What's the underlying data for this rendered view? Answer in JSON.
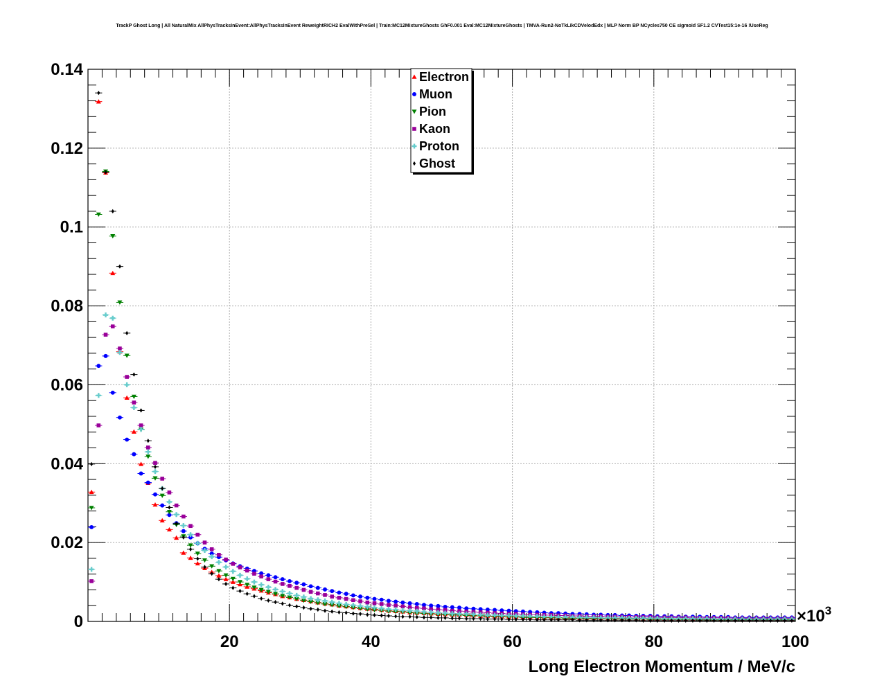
{
  "title": "TrackP Ghost Long | All NaturalMix AllPhysTracksInEvent:AllPhysTracksInEvent ReweightRICH2 EvalWithPreSel | Train:MC12MixtureGhosts GhF0.001 Eval:MC12MixtureGhosts | TMVA-Run2-NoTkLikCDVelodEdx | MLP Norm BP NCycles750 CE sigmoid SF1.2 CVTest15:1e-16 !UseReg",
  "chart_data": {
    "type": "scatter",
    "title": "TrackP Ghost Long | All NaturalMix AllPhysTracksInEvent:AllPhysTracksInEvent ReweightRICH2 EvalWithPreSel | Train:MC12MixtureGhosts GhF0.001 Eval:MC12MixtureGhosts | TMVA-Run2-NoTkLikCDVelodEdx | MLP Norm BP NCycles750 CE sigmoid SF1.2 CVTest15:1e-16 !UseReg",
    "xlabel": "Long Electron Momentum / MeV/c",
    "x_multiplier": "×10^3",
    "xlim": [
      0,
      100
    ],
    "ylim": [
      0,
      0.14
    ],
    "x_ticks": [
      20,
      40,
      60,
      80,
      100
    ],
    "x_tick_labels": [
      "20",
      "40",
      "60",
      "80",
      "100"
    ],
    "y_ticks": [
      0,
      0.02,
      0.04,
      0.06,
      0.08,
      0.1,
      0.12,
      0.14
    ],
    "y_tick_labels": [
      "0",
      "0.02",
      "0.04",
      "0.06",
      "0.08",
      "0.1",
      "0.12",
      "0.14"
    ],
    "grid": true,
    "legend_position": "top-center",
    "x": [
      0.5,
      1.5,
      2.5,
      3.5,
      4.5,
      5.5,
      6.5,
      7.5,
      8.5,
      9.5,
      10.5,
      11.5,
      12.5,
      13.5,
      14.5,
      15.5,
      16.5,
      17.5,
      18.5,
      19.5,
      20.5,
      21.5,
      22.5,
      23.5,
      24.5,
      25.5,
      26.5,
      27.5,
      28.5,
      29.5,
      30.5,
      31.5,
      32.5,
      33.5,
      34.5,
      35.5,
      36.5,
      37.5,
      38.5,
      39.5,
      40.5,
      41.5,
      42.5,
      43.5,
      44.5,
      45.5,
      46.5,
      47.5,
      48.5,
      49.5,
      50.5,
      51.5,
      52.5,
      53.5,
      54.5,
      55.5,
      56.5,
      57.5,
      58.5,
      59.5,
      60.5,
      61.5,
      62.5,
      63.5,
      64.5,
      65.5,
      66.5,
      67.5,
      68.5,
      69.5,
      70.5,
      71.5,
      72.5,
      73.5,
      74.5,
      75.5,
      76.5,
      77.5,
      78.5,
      79.5,
      80.5,
      81.5,
      82.5,
      83.5,
      84.5,
      85.5,
      86.5,
      87.5,
      88.5,
      89.5,
      90.5,
      91.5,
      92.5,
      93.5,
      94.5,
      95.5,
      96.5,
      97.5,
      98.5,
      99.5
    ],
    "series": [
      {
        "name": "Electron",
        "color": "#ff0000",
        "marker": "triangle-up",
        "values": [
          0.0328,
          0.1318,
          0.1138,
          0.0883,
          0.0684,
          0.0567,
          0.0481,
          0.0399,
          0.0351,
          0.0296,
          0.0256,
          0.0233,
          0.0212,
          0.0174,
          0.0161,
          0.0147,
          0.0135,
          0.0125,
          0.0116,
          0.0107,
          0.01,
          0.0094,
          0.0088,
          0.0083,
          0.0078,
          0.0073,
          0.0069,
          0.0064,
          0.0061,
          0.0057,
          0.0054,
          0.0051,
          0.0048,
          0.0045,
          0.0043,
          0.004,
          0.0038,
          0.0036,
          0.0034,
          0.0032,
          0.0031,
          0.0029,
          0.0027,
          0.0026,
          0.0025,
          0.0023,
          0.0022,
          0.0021,
          0.002,
          0.0019,
          0.0018,
          0.0017,
          0.0017,
          0.0016,
          0.0015,
          0.0014,
          0.0014,
          0.0013,
          0.0013,
          0.0012,
          0.0012,
          0.0011,
          0.0011,
          0.001,
          0.001,
          0.001,
          0.0009,
          0.0009,
          0.0009,
          0.0008,
          0.0008,
          0.0008,
          0.0008,
          0.0007,
          0.0007,
          0.0007,
          0.0007,
          0.0007,
          0.0006,
          0.0006,
          0.0006,
          0.0006,
          0.0006,
          0.0006,
          0.0006,
          0.0006,
          0.0006,
          0.0006,
          0.0006,
          0.0006,
          0.0006,
          0.0006,
          0.0006,
          0.0006,
          0.0006,
          0.0006,
          0.0006,
          0.0006,
          0.0006,
          0.0006
        ]
      },
      {
        "name": "Muon",
        "color": "#0000ff",
        "marker": "circle",
        "values": [
          0.0239,
          0.0648,
          0.0673,
          0.058,
          0.0517,
          0.0461,
          0.0424,
          0.0375,
          0.0352,
          0.0322,
          0.0294,
          0.027,
          0.0249,
          0.0229,
          0.0213,
          0.0198,
          0.0184,
          0.0172,
          0.0163,
          0.0155,
          0.0147,
          0.014,
          0.0134,
          0.0128,
          0.0122,
          0.0117,
          0.0112,
          0.0107,
          0.0102,
          0.0098,
          0.0094,
          0.0089,
          0.0085,
          0.0081,
          0.0077,
          0.0073,
          0.007,
          0.0066,
          0.0063,
          0.006,
          0.0057,
          0.0055,
          0.0052,
          0.005,
          0.0048,
          0.0046,
          0.0044,
          0.0042,
          0.004,
          0.0039,
          0.0037,
          0.0036,
          0.0035,
          0.0033,
          0.0032,
          0.0031,
          0.003,
          0.0029,
          0.0028,
          0.0027,
          0.0026,
          0.0025,
          0.0024,
          0.0023,
          0.0022,
          0.0021,
          0.0021,
          0.002,
          0.0019,
          0.0019,
          0.0018,
          0.0017,
          0.0017,
          0.0016,
          0.0016,
          0.0015,
          0.0015,
          0.0014,
          0.0014,
          0.0014,
          0.0013,
          0.0013,
          0.0013,
          0.0012,
          0.0012,
          0.0012,
          0.0012,
          0.0011,
          0.0011,
          0.0011,
          0.0011,
          0.001,
          0.001,
          0.001,
          0.001,
          0.001,
          0.001,
          0.001,
          0.001,
          0.001
        ]
      },
      {
        "name": "Pion",
        "color": "#008000",
        "marker": "triangle-down",
        "values": [
          0.0288,
          0.1032,
          0.1141,
          0.0977,
          0.0809,
          0.0674,
          0.057,
          0.0486,
          0.0418,
          0.0363,
          0.0319,
          0.0278,
          0.0245,
          0.0216,
          0.0193,
          0.0172,
          0.0155,
          0.014,
          0.0128,
          0.0117,
          0.0108,
          0.01,
          0.0093,
          0.0086,
          0.008,
          0.0075,
          0.007,
          0.0065,
          0.0061,
          0.0057,
          0.0053,
          0.005,
          0.0047,
          0.0044,
          0.0042,
          0.0039,
          0.0037,
          0.0035,
          0.0033,
          0.0031,
          0.0029,
          0.0028,
          0.0026,
          0.0025,
          0.0024,
          0.0022,
          0.0021,
          0.002,
          0.0019,
          0.0018,
          0.0017,
          0.0016,
          0.0016,
          0.0015,
          0.0014,
          0.0014,
          0.0013,
          0.0012,
          0.0012,
          0.0011,
          0.0011,
          0.001,
          0.001,
          0.001,
          0.0009,
          0.0009,
          0.0009,
          0.0008,
          0.0008,
          0.0008,
          0.0007,
          0.0007,
          0.0007,
          0.0007,
          0.0006,
          0.0006,
          0.0006,
          0.0006,
          0.0006,
          0.0005,
          0.0005,
          0.0005,
          0.0005,
          0.0005,
          0.0005,
          0.0005,
          0.0004,
          0.0004,
          0.0004,
          0.0004,
          0.0004,
          0.0004,
          0.0004,
          0.0004,
          0.0004,
          0.0004,
          0.0004,
          0.0004,
          0.0004,
          0.0004
        ]
      },
      {
        "name": "Kaon",
        "color": "#990099",
        "marker": "square",
        "values": [
          0.0102,
          0.0497,
          0.0727,
          0.0748,
          0.0692,
          0.062,
          0.0555,
          0.0497,
          0.0441,
          0.0402,
          0.0362,
          0.0327,
          0.0294,
          0.0266,
          0.0242,
          0.022,
          0.02,
          0.0183,
          0.0169,
          0.0157,
          0.0146,
          0.0137,
          0.0129,
          0.0121,
          0.0114,
          0.0107,
          0.0101,
          0.0095,
          0.009,
          0.0085,
          0.008,
          0.0075,
          0.0071,
          0.0067,
          0.0063,
          0.006,
          0.0057,
          0.0054,
          0.0051,
          0.0048,
          0.0046,
          0.0044,
          0.0042,
          0.004,
          0.0038,
          0.0036,
          0.0034,
          0.0033,
          0.0031,
          0.003,
          0.0029,
          0.0027,
          0.0026,
          0.0025,
          0.0024,
          0.0023,
          0.0022,
          0.0021,
          0.002,
          0.0019,
          0.0019,
          0.0018,
          0.0017,
          0.0017,
          0.0016,
          0.0016,
          0.0015,
          0.0015,
          0.0014,
          0.0014,
          0.0013,
          0.0013,
          0.0013,
          0.0012,
          0.0012,
          0.0012,
          0.0011,
          0.0011,
          0.0011,
          0.0011,
          0.001,
          0.001,
          0.001,
          0.001,
          0.001,
          0.0009,
          0.0009,
          0.0009,
          0.0009,
          0.0009,
          0.0009,
          0.0008,
          0.0008,
          0.0008,
          0.0008,
          0.0008,
          0.0008,
          0.0008,
          0.0008,
          0.0008
        ]
      },
      {
        "name": "Proton",
        "color": "#66cccc",
        "marker": "cross",
        "values": [
          0.0132,
          0.0573,
          0.0777,
          0.0769,
          0.0682,
          0.06,
          0.0542,
          0.0487,
          0.043,
          0.038,
          0.0337,
          0.0303,
          0.0271,
          0.0243,
          0.022,
          0.0198,
          0.018,
          0.0164,
          0.015,
          0.0138,
          0.0127,
          0.0117,
          0.0108,
          0.01,
          0.0093,
          0.0087,
          0.0081,
          0.0076,
          0.0071,
          0.0066,
          0.0062,
          0.0058,
          0.0055,
          0.0052,
          0.0049,
          0.0046,
          0.0043,
          0.0041,
          0.0039,
          0.0037,
          0.0035,
          0.0033,
          0.0031,
          0.003,
          0.0028,
          0.0027,
          0.0026,
          0.0024,
          0.0023,
          0.0022,
          0.0021,
          0.002,
          0.0019,
          0.0019,
          0.0018,
          0.0017,
          0.0016,
          0.0016,
          0.0015,
          0.0015,
          0.0014,
          0.0014,
          0.0013,
          0.0013,
          0.0012,
          0.0012,
          0.0011,
          0.0011,
          0.0011,
          0.001,
          0.001,
          0.001,
          0.0009,
          0.0009,
          0.0009,
          0.0009,
          0.0008,
          0.0008,
          0.0008,
          0.0008,
          0.0008,
          0.0007,
          0.0007,
          0.0007,
          0.0007,
          0.0007,
          0.0007,
          0.0007,
          0.0006,
          0.0006,
          0.0006,
          0.0006,
          0.0006,
          0.0006,
          0.0006,
          0.0006,
          0.0006,
          0.0006,
          0.0006,
          0.0006
        ]
      },
      {
        "name": "Ghost",
        "color": "#000000",
        "marker": "diamond",
        "values": [
          0.0399,
          0.134,
          0.1139,
          0.104,
          0.09,
          0.0731,
          0.0626,
          0.0535,
          0.0458,
          0.0392,
          0.0337,
          0.0289,
          0.0248,
          0.0213,
          0.0183,
          0.0159,
          0.0138,
          0.0121,
          0.0107,
          0.0095,
          0.0085,
          0.0077,
          0.007,
          0.0064,
          0.0058,
          0.0053,
          0.0049,
          0.0045,
          0.0041,
          0.0038,
          0.0035,
          0.0032,
          0.003,
          0.0027,
          0.0025,
          0.0023,
          0.0022,
          0.002,
          0.0019,
          0.0017,
          0.0016,
          0.0015,
          0.0014,
          0.0013,
          0.0012,
          0.0012,
          0.0011,
          0.001,
          0.001,
          0.0009,
          0.0009,
          0.0008,
          0.0008,
          0.0007,
          0.0007,
          0.0007,
          0.0006,
          0.0006,
          0.0006,
          0.0005,
          0.0005,
          0.0005,
          0.0005,
          0.0004,
          0.0004,
          0.0004,
          0.0004,
          0.0004,
          0.0004,
          0.0003,
          0.0003,
          0.0003,
          0.0003,
          0.0003,
          0.0003,
          0.0003,
          0.0003,
          0.0003,
          0.0002,
          0.0002,
          0.0002,
          0.0002,
          0.0002,
          0.0002,
          0.0002,
          0.0002,
          0.0002,
          0.0002,
          0.0002,
          0.0002,
          0.0002,
          0.0002,
          0.0002,
          0.0002,
          0.0002,
          0.0002,
          0.0002,
          0.0002,
          0.0002,
          0.0002
        ]
      }
    ]
  }
}
